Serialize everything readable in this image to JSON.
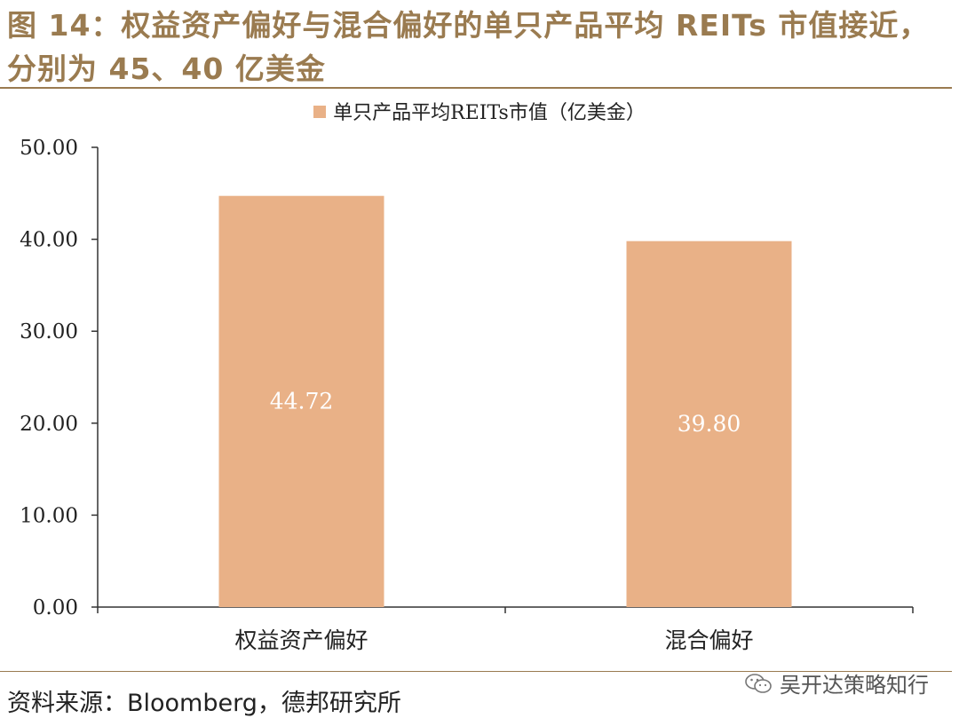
{
  "figure": {
    "title": "图 14：权益资产偏好与混合偏好的单只产品平均 REITs 市值接近，分别为 45、40 亿美金",
    "source": "资料来源：Bloomberg，德邦研究所",
    "watermark": "吴开达策略知行",
    "watermark_icon": "wechat-icon"
  },
  "colors": {
    "bar": "#e9b187",
    "title": "#9a7b50",
    "axis": "#333333",
    "data_label": "#ffffff"
  },
  "chart_data": {
    "type": "bar",
    "categories": [
      "权益资产偏好",
      "混合偏好"
    ],
    "series": [
      {
        "name": "单只产品平均REITs市值（亿美金）",
        "values": [
          44.72,
          39.8
        ]
      }
    ],
    "data_labels": [
      "44.72",
      "39.80"
    ],
    "ylim": [
      0,
      50
    ],
    "yticks": [
      0,
      10,
      20,
      30,
      40,
      50
    ],
    "ytick_labels": [
      "0.00",
      "10.00",
      "20.00",
      "30.00",
      "40.00",
      "50.00"
    ],
    "xlabel": "",
    "ylabel": "",
    "grid": false,
    "legend_position": "top-center"
  }
}
